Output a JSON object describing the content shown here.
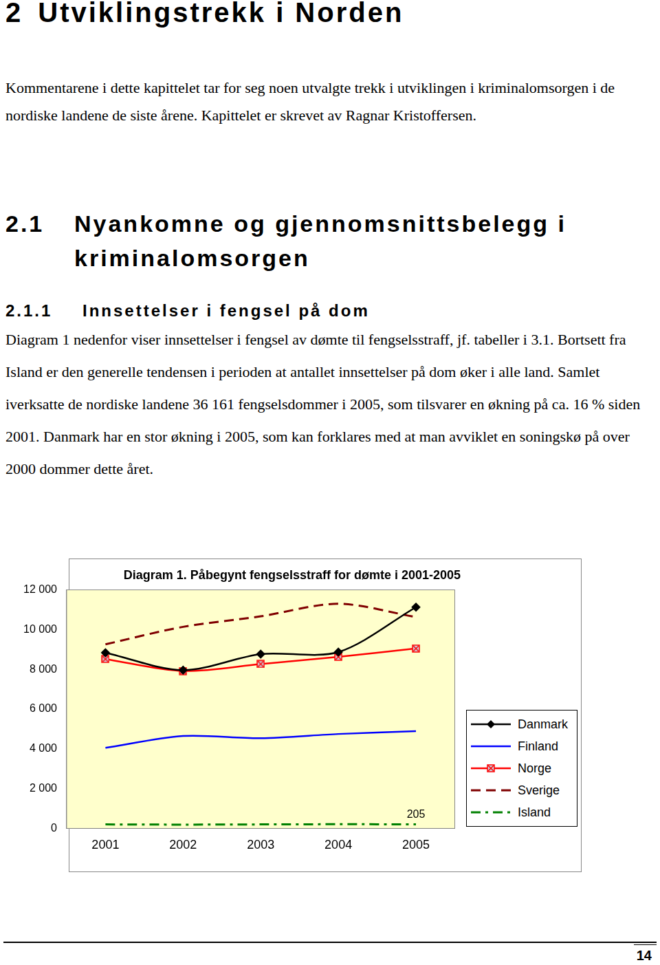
{
  "document": {
    "heading": {
      "number": "2",
      "title": "Utviklingstrekk i Norden"
    },
    "intro": "Kommentarene i dette kapittelet tar for seg noen utvalgte trekk i utviklingen i kriminalomsorgen i de nordiske landene de siste årene. Kapittelet er skrevet av Ragnar Kristoffersen.",
    "section": {
      "number": "2.1",
      "title": "Nyankomne og gjennomsnittsbelegg i kriminalomsorgen"
    },
    "subsection": {
      "number": "2.1.1",
      "title": "Innsettelser i fengsel på dom"
    },
    "paragraph": "Diagram 1 nedenfor viser innsettelser i fengsel av dømte til fengselsstraff, jf. tabeller i 3.1. Bortsett fra Island er den generelle tendensen i perioden at antallet innsettelser på dom øker i alle land. Samlet iverksatte de nordiske landene 36 161 fengselsdommer i 2005, som tilsvarer en økning på ca. 16 % siden 2001. Danmark har en stor økning i 2005, som kan forklares med at man avviklet en soningskø på over 2000 dommer dette året.",
    "page_number": "14"
  },
  "chart_data": {
    "type": "line",
    "title": "Diagram 1. Påbegynt fengselsstraff for dømte i 2001-2005",
    "categories": [
      "2001",
      "2002",
      "2003",
      "2004",
      "2005"
    ],
    "series": [
      {
        "name": "Danmark",
        "color": "#000000",
        "marker": "diamond",
        "line_style": "solid",
        "values": [
          8840,
          7960,
          8770,
          8870,
          11130
        ]
      },
      {
        "name": "Finland",
        "color": "#0000ff",
        "marker": "none",
        "line_style": "solid",
        "values": [
          4050,
          4650,
          4540,
          4750,
          4890
        ]
      },
      {
        "name": "Norge",
        "color": "#ff0000",
        "marker": "square-x",
        "line_style": "solid",
        "values": [
          8520,
          7920,
          8270,
          8630,
          9050
        ]
      },
      {
        "name": "Sverige",
        "color": "#800000",
        "marker": "none",
        "line_style": "dashed",
        "values": [
          9260,
          10140,
          10670,
          11300,
          10630
        ]
      },
      {
        "name": "Island",
        "color": "#008000",
        "marker": "none",
        "line_style": "dashdot",
        "values": [
          200,
          190,
          200,
          210,
          205
        ]
      }
    ],
    "annotations": [
      {
        "text": "205",
        "x": "2005",
        "y": 205
      }
    ],
    "ylim": [
      0,
      12000
    ],
    "yticks": [
      0,
      {
        "value": 2000,
        "label": "2 000"
      },
      {
        "value": 4000,
        "label": "4 000"
      },
      {
        "value": 6000,
        "label": "6 000"
      },
      {
        "value": 8000,
        "label": "8 000"
      },
      {
        "value": 10000,
        "label": "10 000"
      },
      {
        "value": 12000,
        "label": "12 000"
      }
    ],
    "grid": false,
    "legend": "right"
  }
}
